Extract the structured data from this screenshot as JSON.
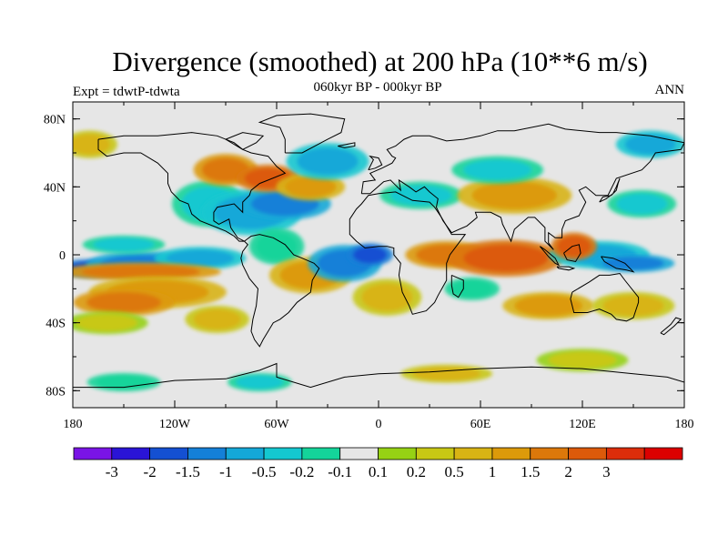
{
  "title": "Divergence (smoothed) at 200 hPa (10**6 m/s)",
  "subtitle": "060kyr BP - 000kyr BP",
  "experiment_label": "Expt = tdwtP-tdwta",
  "season_label": "ANN",
  "map": {
    "projection": "cylindrical equidistant",
    "lon_range": [
      -180,
      180
    ],
    "lat_range": [
      -90,
      90
    ],
    "lat_ticks": [
      {
        "lat": 80,
        "label": "80N"
      },
      {
        "lat": 40,
        "label": "40N"
      },
      {
        "lat": 0,
        "label": "0"
      },
      {
        "lat": -40,
        "label": "40S"
      },
      {
        "lat": -80,
        "label": "80S"
      }
    ],
    "lon_ticks": [
      {
        "lon": -180,
        "label": "180"
      },
      {
        "lon": -120,
        "label": "120W"
      },
      {
        "lon": -60,
        "label": "60W"
      },
      {
        "lon": 0,
        "label": "0"
      },
      {
        "lon": 60,
        "label": "60E"
      },
      {
        "lon": 120,
        "label": "120E"
      },
      {
        "lon": 180,
        "label": "180"
      }
    ],
    "background_color": "#e6e6e6",
    "coastline_color": "#000000"
  },
  "colorbar": {
    "colors": [
      "#7a14e6",
      "#2a14d6",
      "#1450d2",
      "#1480d8",
      "#14a8d8",
      "#14c8d0",
      "#14d49a",
      "#e6e6e6",
      "#96d214",
      "#c8c814",
      "#d8b414",
      "#dc9a0a",
      "#dc780a",
      "#dc5a0a",
      "#dc2d0a",
      "#dc0000"
    ],
    "labels": [
      "-3",
      "-2",
      "-1.5",
      "-1",
      "-0.5",
      "-0.2",
      "-0.1",
      "0.1",
      "0.2",
      "0.5",
      "1",
      "1.5",
      "2",
      "3"
    ]
  },
  "blobs": [
    {
      "lon": -170,
      "lat": -8,
      "rlon": 14,
      "rlat": 4,
      "level": 2
    },
    {
      "lon": -140,
      "lat": -6,
      "rlon": 24,
      "rlat": 6,
      "level": 3
    },
    {
      "lon": -105,
      "lat": -2,
      "rlon": 20,
      "rlat": 5,
      "level": 4
    },
    {
      "lon": -150,
      "lat": 6,
      "rlon": 18,
      "rlat": 4,
      "level": 5
    },
    {
      "lon": -140,
      "lat": -10,
      "rlon": 35,
      "rlat": 4,
      "level": 12
    },
    {
      "lon": -130,
      "lat": -22,
      "rlon": 30,
      "rlat": 7,
      "level": 11
    },
    {
      "lon": -150,
      "lat": -28,
      "rlon": 22,
      "rlat": 6,
      "level": 12
    },
    {
      "lon": -160,
      "lat": -40,
      "rlon": 18,
      "rlat": 5,
      "level": 9
    },
    {
      "lon": -95,
      "lat": -38,
      "rlon": 14,
      "rlat": 6,
      "level": 10
    },
    {
      "lon": -100,
      "lat": 30,
      "rlon": 16,
      "rlat": 10,
      "level": 5
    },
    {
      "lon": -75,
      "lat": 25,
      "rlon": 22,
      "rlat": 10,
      "level": 4
    },
    {
      "lon": -55,
      "lat": 30,
      "rlon": 20,
      "rlat": 7,
      "level": 3
    },
    {
      "lon": -90,
      "lat": 50,
      "rlon": 14,
      "rlat": 7,
      "level": 12
    },
    {
      "lon": -65,
      "lat": 45,
      "rlon": 14,
      "rlat": 6,
      "level": 13
    },
    {
      "lon": -40,
      "lat": 40,
      "rlon": 15,
      "rlat": 6,
      "level": 11
    },
    {
      "lon": -30,
      "lat": 55,
      "rlon": 18,
      "rlat": 8,
      "level": 4
    },
    {
      "lon": -60,
      "lat": 5,
      "rlon": 12,
      "rlat": 8,
      "level": 6
    },
    {
      "lon": -40,
      "lat": -12,
      "rlon": 18,
      "rlat": 8,
      "level": 11
    },
    {
      "lon": -20,
      "lat": -5,
      "rlon": 16,
      "rlat": 8,
      "level": 3
    },
    {
      "lon": -5,
      "lat": 0,
      "rlon": 10,
      "rlat": 5,
      "level": 2
    },
    {
      "lon": 5,
      "lat": -25,
      "rlon": 15,
      "rlat": 8,
      "level": 10
    },
    {
      "lon": 40,
      "lat": 0,
      "rlon": 18,
      "rlat": 6,
      "level": 12
    },
    {
      "lon": 75,
      "lat": -2,
      "rlon": 25,
      "rlat": 8,
      "level": 13
    },
    {
      "lon": 55,
      "lat": -20,
      "rlon": 12,
      "rlat": 5,
      "level": 6
    },
    {
      "lon": 25,
      "lat": 35,
      "rlon": 18,
      "rlat": 6,
      "level": 5
    },
    {
      "lon": 80,
      "lat": 35,
      "rlon": 25,
      "rlat": 8,
      "level": 11
    },
    {
      "lon": 70,
      "lat": 50,
      "rlon": 20,
      "rlat": 6,
      "level": 5
    },
    {
      "lon": 130,
      "lat": 0,
      "rlon": 22,
      "rlat": 6,
      "level": 4
    },
    {
      "lon": 150,
      "lat": -5,
      "rlon": 18,
      "rlat": 4,
      "level": 3
    },
    {
      "lon": 115,
      "lat": 5,
      "rlon": 10,
      "rlat": 6,
      "level": 13
    },
    {
      "lon": 155,
      "lat": 30,
      "rlon": 15,
      "rlat": 6,
      "level": 5
    },
    {
      "lon": 100,
      "lat": -30,
      "rlon": 20,
      "rlat": 6,
      "level": 11
    },
    {
      "lon": 150,
      "lat": -30,
      "rlon": 18,
      "rlat": 6,
      "level": 10
    },
    {
      "lon": -150,
      "lat": -75,
      "rlon": 16,
      "rlat": 4,
      "level": 6
    },
    {
      "lon": -70,
      "lat": -75,
      "rlon": 14,
      "rlat": 4,
      "level": 5
    },
    {
      "lon": 40,
      "lat": -70,
      "rlon": 20,
      "rlat": 4,
      "level": 10
    },
    {
      "lon": 120,
      "lat": -62,
      "rlon": 20,
      "rlat": 5,
      "level": 9
    },
    {
      "lon": -170,
      "lat": 65,
      "rlon": 12,
      "rlat": 6,
      "level": 10
    },
    {
      "lon": 160,
      "lat": 65,
      "rlon": 15,
      "rlat": 6,
      "level": 4
    }
  ],
  "coastlines": [
    [
      [
        -165,
        68
      ],
      [
        -150,
        70
      ],
      [
        -130,
        70
      ],
      [
        -110,
        72
      ],
      [
        -95,
        70
      ],
      [
        -85,
        66
      ],
      [
        -80,
        62
      ],
      [
        -75,
        60
      ],
      [
        -65,
        58
      ],
      [
        -60,
        52
      ],
      [
        -55,
        48
      ],
      [
        -65,
        44
      ],
      [
        -70,
        42
      ],
      [
        -75,
        38
      ],
      [
        -76,
        35
      ],
      [
        -80,
        31
      ],
      [
        -80,
        25
      ],
      [
        -82,
        27
      ],
      [
        -85,
        30
      ],
      [
        -90,
        29
      ],
      [
        -95,
        28
      ],
      [
        -97,
        25
      ],
      [
        -97,
        20
      ],
      [
        -94,
        18
      ],
      [
        -88,
        21
      ],
      [
        -87,
        16
      ],
      [
        -83,
        10
      ],
      [
        -79,
        8
      ],
      [
        -82,
        8
      ],
      [
        -85,
        11
      ],
      [
        -90,
        14
      ],
      [
        -95,
        16
      ],
      [
        -105,
        20
      ],
      [
        -110,
        24
      ],
      [
        -112,
        30
      ],
      [
        -117,
        32
      ],
      [
        -122,
        37
      ],
      [
        -124,
        42
      ],
      [
        -124,
        48
      ],
      [
        -130,
        54
      ],
      [
        -140,
        60
      ],
      [
        -150,
        60
      ],
      [
        -160,
        58
      ],
      [
        -165,
        62
      ],
      [
        -165,
        68
      ]
    ],
    [
      [
        -79,
        8
      ],
      [
        -75,
        11
      ],
      [
        -70,
        12
      ],
      [
        -62,
        10
      ],
      [
        -55,
        6
      ],
      [
        -50,
        0
      ],
      [
        -45,
        -2
      ],
      [
        -38,
        -5
      ],
      [
        -35,
        -8
      ],
      [
        -39,
        -15
      ],
      [
        -40,
        -22
      ],
      [
        -48,
        -28
      ],
      [
        -53,
        -34
      ],
      [
        -58,
        -38
      ],
      [
        -62,
        -40
      ],
      [
        -65,
        -45
      ],
      [
        -68,
        -50
      ],
      [
        -70,
        -54
      ],
      [
        -73,
        -50
      ],
      [
        -75,
        -45
      ],
      [
        -74,
        -38
      ],
      [
        -72,
        -30
      ],
      [
        -71,
        -20
      ],
      [
        -76,
        -14
      ],
      [
        -80,
        -6
      ],
      [
        -81,
        -2
      ],
      [
        -80,
        2
      ],
      [
        -77,
        6
      ],
      [
        -79,
        8
      ]
    ],
    [
      [
        -17,
        15
      ],
      [
        -17,
        21
      ],
      [
        -13,
        27
      ],
      [
        -10,
        30
      ],
      [
        -6,
        35
      ],
      [
        0,
        36
      ],
      [
        10,
        37
      ],
      [
        20,
        32
      ],
      [
        30,
        31
      ],
      [
        33,
        28
      ],
      [
        37,
        22
      ],
      [
        43,
        12
      ],
      [
        51,
        12
      ],
      [
        48,
        8
      ],
      [
        42,
        0
      ],
      [
        40,
        -5
      ],
      [
        40,
        -15
      ],
      [
        35,
        -24
      ],
      [
        33,
        -28
      ],
      [
        28,
        -33
      ],
      [
        20,
        -35
      ],
      [
        18,
        -30
      ],
      [
        14,
        -22
      ],
      [
        12,
        -12
      ],
      [
        13,
        -5
      ],
      [
        9,
        0
      ],
      [
        9,
        4
      ],
      [
        5,
        5
      ],
      [
        0,
        5
      ],
      [
        -8,
        4
      ],
      [
        -13,
        8
      ],
      [
        -17,
        12
      ],
      [
        -17,
        15
      ]
    ],
    [
      [
        -10,
        36
      ],
      [
        -9,
        43
      ],
      [
        -2,
        44
      ],
      [
        -5,
        48
      ],
      [
        2,
        51
      ],
      [
        8,
        54
      ],
      [
        10,
        57
      ],
      [
        8,
        58
      ],
      [
        5,
        62
      ],
      [
        10,
        64
      ],
      [
        15,
        68
      ],
      [
        20,
        70
      ],
      [
        30,
        70
      ],
      [
        40,
        67
      ],
      [
        50,
        68
      ],
      [
        60,
        70
      ],
      [
        70,
        73
      ],
      [
        80,
        73
      ],
      [
        100,
        77
      ],
      [
        110,
        74
      ],
      [
        130,
        72
      ],
      [
        140,
        72
      ],
      [
        160,
        70
      ],
      [
        170,
        68
      ],
      [
        180,
        66
      ],
      [
        178,
        62
      ],
      [
        163,
        60
      ],
      [
        160,
        55
      ],
      [
        155,
        50
      ],
      [
        140,
        45
      ],
      [
        135,
        35
      ],
      [
        128,
        35
      ],
      [
        122,
        40
      ],
      [
        118,
        38
      ],
      [
        122,
        31
      ],
      [
        118,
        23
      ],
      [
        110,
        20
      ],
      [
        108,
        15
      ],
      [
        108,
        10
      ],
      [
        104,
        10
      ],
      [
        100,
        13
      ],
      [
        100,
        7
      ],
      [
        103,
        3
      ],
      [
        98,
        8
      ],
      [
        98,
        16
      ],
      [
        92,
        22
      ],
      [
        88,
        22
      ],
      [
        80,
        15
      ],
      [
        78,
        8
      ],
      [
        73,
        18
      ],
      [
        72,
        22
      ],
      [
        66,
        25
      ],
      [
        57,
        25
      ],
      [
        58,
        22
      ],
      [
        52,
        17
      ],
      [
        43,
        13
      ],
      [
        38,
        20
      ],
      [
        34,
        28
      ],
      [
        35,
        33
      ],
      [
        30,
        37
      ],
      [
        27,
        40
      ],
      [
        22,
        37
      ],
      [
        18,
        40
      ],
      [
        12,
        44
      ],
      [
        13,
        38
      ],
      [
        7,
        44
      ],
      [
        3,
        43
      ],
      [
        -5,
        36
      ],
      [
        -10,
        36
      ]
    ],
    [
      [
        114,
        -22
      ],
      [
        113,
        -26
      ],
      [
        115,
        -34
      ],
      [
        123,
        -34
      ],
      [
        130,
        -32
      ],
      [
        137,
        -35
      ],
      [
        140,
        -38
      ],
      [
        146,
        -39
      ],
      [
        150,
        -37
      ],
      [
        153,
        -28
      ],
      [
        153,
        -25
      ],
      [
        145,
        -15
      ],
      [
        142,
        -11
      ],
      [
        136,
        -12
      ],
      [
        130,
        -12
      ],
      [
        124,
        -16
      ],
      [
        114,
        -22
      ]
    ],
    [
      [
        -55,
        60
      ],
      [
        -45,
        60
      ],
      [
        -30,
        68
      ],
      [
        -22,
        72
      ],
      [
        -20,
        80
      ],
      [
        -40,
        83
      ],
      [
        -60,
        82
      ],
      [
        -70,
        78
      ],
      [
        -58,
        75
      ],
      [
        -55,
        68
      ],
      [
        -55,
        60
      ]
    ],
    [
      [
        -180,
        -78
      ],
      [
        -150,
        -78
      ],
      [
        -120,
        -74
      ],
      [
        -90,
        -73
      ],
      [
        -70,
        -68
      ],
      [
        -60,
        -64
      ],
      [
        -60,
        -72
      ],
      [
        -40,
        -78
      ],
      [
        -20,
        -72
      ],
      [
        0,
        -70
      ],
      [
        30,
        -69
      ],
      [
        60,
        -67
      ],
      [
        90,
        -66
      ],
      [
        120,
        -67
      ],
      [
        150,
        -70
      ],
      [
        170,
        -72
      ],
      [
        180,
        -75
      ]
    ],
    [
      [
        -6,
        50
      ],
      [
        -5,
        52
      ],
      [
        -3,
        56
      ],
      [
        -5,
        58
      ],
      [
        0,
        57
      ],
      [
        2,
        53
      ],
      [
        -2,
        51
      ],
      [
        -6,
        50
      ]
    ],
    [
      [
        130,
        31
      ],
      [
        132,
        34
      ],
      [
        137,
        35
      ],
      [
        140,
        38
      ],
      [
        141,
        42
      ],
      [
        142,
        45
      ],
      [
        140,
        40
      ],
      [
        138,
        36
      ],
      [
        134,
        33
      ],
      [
        130,
        31
      ]
    ],
    [
      [
        95,
        5
      ],
      [
        98,
        3
      ],
      [
        104,
        -2
      ],
      [
        106,
        -6
      ],
      [
        104,
        -5
      ],
      [
        100,
        -1
      ],
      [
        95,
        5
      ]
    ],
    [
      [
        105,
        -7
      ],
      [
        112,
        -7
      ],
      [
        115,
        -8
      ],
      [
        112,
        -9
      ],
      [
        106,
        -8
      ],
      [
        105,
        -7
      ]
    ],
    [
      [
        109,
        1
      ],
      [
        114,
        5
      ],
      [
        118,
        6
      ],
      [
        119,
        1
      ],
      [
        116,
        -4
      ],
      [
        111,
        -3
      ],
      [
        109,
        1
      ]
    ],
    [
      [
        131,
        -1
      ],
      [
        138,
        -2
      ],
      [
        145,
        -5
      ],
      [
        150,
        -10
      ],
      [
        146,
        -9
      ],
      [
        140,
        -8
      ],
      [
        133,
        -4
      ],
      [
        131,
        -1
      ]
    ],
    [
      [
        43,
        -12
      ],
      [
        50,
        -15
      ],
      [
        50,
        -20
      ],
      [
        47,
        -25
      ],
      [
        44,
        -23
      ],
      [
        43,
        -18
      ],
      [
        43,
        -12
      ]
    ],
    [
      [
        166,
        -46
      ],
      [
        172,
        -41
      ],
      [
        175,
        -37
      ],
      [
        178,
        -38
      ],
      [
        174,
        -42
      ],
      [
        168,
        -47
      ],
      [
        166,
        -46
      ]
    ],
    [
      [
        -24,
        64
      ],
      [
        -14,
        66
      ],
      [
        -14,
        64
      ],
      [
        -20,
        63
      ],
      [
        -24,
        64
      ]
    ],
    [
      [
        -80,
        62
      ],
      [
        -72,
        66
      ],
      [
        -68,
        70
      ],
      [
        -80,
        72
      ],
      [
        -90,
        68
      ],
      [
        -80,
        62
      ]
    ]
  ]
}
